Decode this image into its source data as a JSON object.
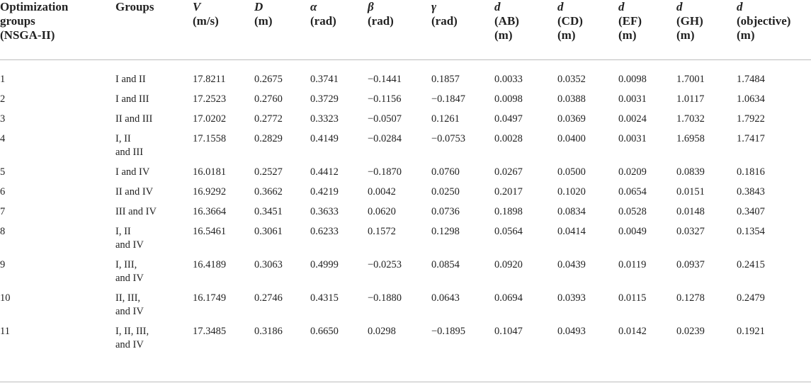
{
  "headers": [
    {
      "l1": "Optimization",
      "l2": "groups",
      "l3": "(NSGA-II)",
      "italic": false
    },
    {
      "l1": "Groups",
      "l2": "",
      "l3": "",
      "italic": false
    },
    {
      "l1": "V",
      "l2": "(m/s)",
      "l3": "",
      "italic": true
    },
    {
      "l1": "D",
      "l2": "(m)",
      "l3": "",
      "italic": true
    },
    {
      "l1": "α",
      "l2": "(rad)",
      "l3": "",
      "italic": true
    },
    {
      "l1": "β",
      "l2": "(rad)",
      "l3": "",
      "italic": true
    },
    {
      "l1": "γ",
      "l2": "(rad)",
      "l3": "",
      "italic": true
    },
    {
      "l1": "d",
      "l2": "(AB)",
      "l3": "(m)",
      "italic": true
    },
    {
      "l1": "d",
      "l2": "(CD)",
      "l3": "(m)",
      "italic": true
    },
    {
      "l1": "d",
      "l2": "(EF)",
      "l3": "(m)",
      "italic": true
    },
    {
      "l1": "d",
      "l2": "(GH)",
      "l3": "(m)",
      "italic": true
    },
    {
      "l1": "d",
      "l2": "(objective)",
      "l3": "(m)",
      "italic": true
    }
  ],
  "rows": [
    {
      "id": "1",
      "g1": "I and II",
      "g2": "",
      "v": [
        "17.8211",
        "0.2675",
        "0.3741",
        "−0.1441",
        "0.1857",
        "0.0033",
        "0.0352",
        "0.0098",
        "1.7001",
        "1.7484"
      ]
    },
    {
      "id": "2",
      "g1": "I and III",
      "g2": "",
      "v": [
        "17.2523",
        "0.2760",
        "0.3729",
        "−0.1156",
        "−0.1847",
        "0.0098",
        "0.0388",
        "0.0031",
        "1.0117",
        "1.0634"
      ]
    },
    {
      "id": "3",
      "g1": "II and III",
      "g2": "",
      "v": [
        "17.0202",
        "0.2772",
        "0.3323",
        "−0.0507",
        "0.1261",
        "0.0497",
        "0.0369",
        "0.0024",
        "1.7032",
        "1.7922"
      ]
    },
    {
      "id": "4",
      "g1": "I, II",
      "g2": "and III",
      "v": [
        "17.1558",
        "0.2829",
        "0.4149",
        "−0.0284",
        "−0.0753",
        "0.0028",
        "0.0400",
        "0.0031",
        "1.6958",
        "1.7417"
      ]
    },
    {
      "id": "5",
      "g1": "I and IV",
      "g2": "",
      "v": [
        "16.0181",
        "0.2527",
        "0.4412",
        "−0.1870",
        "0.0760",
        "0.0267",
        "0.0500",
        "0.0209",
        "0.0839",
        "0.1816"
      ]
    },
    {
      "id": "6",
      "g1": "II and IV",
      "g2": "",
      "v": [
        "16.9292",
        "0.3662",
        "0.4219",
        "0.0042",
        "0.0250",
        "0.2017",
        "0.1020",
        "0.0654",
        "0.0151",
        "0.3843"
      ]
    },
    {
      "id": "7",
      "g1": "III and IV",
      "g2": "",
      "v": [
        "16.3664",
        "0.3451",
        "0.3633",
        "0.0620",
        "0.0736",
        "0.1898",
        "0.0834",
        "0.0528",
        "0.0148",
        "0.3407"
      ]
    },
    {
      "id": "8",
      "g1": "I, II",
      "g2": "and IV",
      "v": [
        "16.5461",
        "0.3061",
        "0.6233",
        "0.1572",
        "0.1298",
        "0.0564",
        "0.0414",
        "0.0049",
        "0.0327",
        "0.1354"
      ]
    },
    {
      "id": "9",
      "g1": "I, III,",
      "g2": "and IV",
      "v": [
        "16.4189",
        "0.3063",
        "0.4999",
        "−0.0253",
        "0.0854",
        "0.0920",
        "0.0439",
        "0.0119",
        "0.0937",
        "0.2415"
      ]
    },
    {
      "id": "10",
      "g1": "II, III,",
      "g2": "and IV",
      "v": [
        "16.1749",
        "0.2746",
        "0.4315",
        "−0.1880",
        "0.0643",
        "0.0694",
        "0.0393",
        "0.0115",
        "0.1278",
        "0.2479"
      ]
    },
    {
      "id": "11",
      "g1": "I, II, III,",
      "g2": "and IV",
      "v": [
        "17.3485",
        "0.3186",
        "0.6650",
        "0.0298",
        "−0.1895",
        "0.1047",
        "0.0493",
        "0.0142",
        "0.0239",
        "0.1921"
      ]
    }
  ]
}
